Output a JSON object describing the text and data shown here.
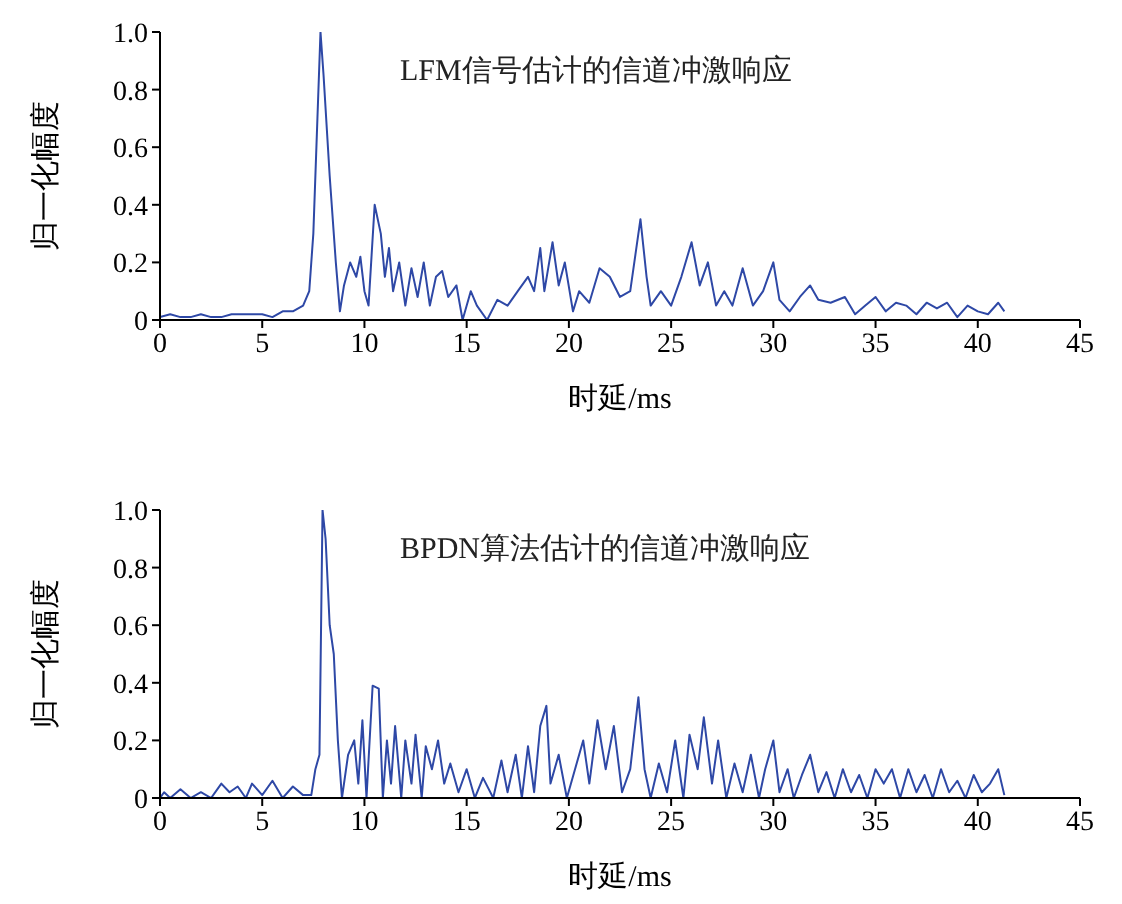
{
  "chart_data": [
    {
      "type": "line",
      "annotations": [
        "LFM信号估计的信道冲激响应"
      ],
      "xlabel": "时延/ms",
      "ylabel": "归一化幅度",
      "xlim": [
        0,
        45
      ],
      "xticks": [
        0,
        5,
        10,
        15,
        20,
        25,
        30,
        35,
        40,
        45
      ],
      "ylim": [
        0,
        1
      ],
      "yticks": [
        0,
        0.2,
        0.4,
        0.6,
        0.8,
        {
          "value": 1,
          "label": "1.0"
        }
      ],
      "series": [
        {
          "color": "#2e48a6",
          "x": [
            0,
            0.5,
            1,
            1.5,
            2,
            2.5,
            3,
            3.5,
            4,
            4.5,
            5,
            5.5,
            6,
            6.5,
            7,
            7.3,
            7.5,
            7.7,
            7.85,
            8,
            8.3,
            8.6,
            8.8,
            9,
            9.3,
            9.6,
            9.8,
            10,
            10.2,
            10.5,
            10.8,
            11,
            11.2,
            11.4,
            11.7,
            12,
            12.3,
            12.6,
            12.9,
            13.2,
            13.5,
            13.8,
            14.1,
            14.5,
            14.8,
            15.2,
            15.5,
            16,
            16.5,
            17,
            17.5,
            18,
            18.3,
            18.6,
            18.8,
            19.2,
            19.5,
            19.8,
            20.2,
            20.5,
            21,
            21.5,
            22,
            22.5,
            23,
            23.5,
            23.8,
            24,
            24.5,
            25,
            25.5,
            26,
            26.4,
            26.8,
            27.2,
            27.6,
            28,
            28.5,
            29,
            29.5,
            30,
            30.3,
            30.8,
            31.3,
            31.8,
            32.2,
            32.8,
            33.5,
            34,
            34.5,
            35,
            35.5,
            36,
            36.5,
            37,
            37.5,
            38,
            38.5,
            39,
            39.5,
            40,
            40.5,
            41,
            41.3
          ],
          "values": [
            0.01,
            0.02,
            0.01,
            0.01,
            0.02,
            0.01,
            0.01,
            0.02,
            0.02,
            0.02,
            0.02,
            0.01,
            0.03,
            0.03,
            0.05,
            0.1,
            0.3,
            0.7,
            1,
            0.85,
            0.5,
            0.2,
            0.03,
            0.12,
            0.2,
            0.15,
            0.22,
            0.1,
            0.05,
            0.4,
            0.3,
            0.15,
            0.25,
            0.1,
            0.2,
            0.05,
            0.18,
            0.08,
            0.2,
            0.05,
            0.15,
            0.17,
            0.08,
            0.12,
            0,
            0.1,
            0.05,
            0,
            0.07,
            0.05,
            0.1,
            0.15,
            0.1,
            0.25,
            0.1,
            0.27,
            0.12,
            0.2,
            0.03,
            0.1,
            0.06,
            0.18,
            0.15,
            0.08,
            0.1,
            0.35,
            0.15,
            0.05,
            0.1,
            0.05,
            0.15,
            0.27,
            0.12,
            0.2,
            0.05,
            0.1,
            0.05,
            0.18,
            0.05,
            0.1,
            0.2,
            0.07,
            0.03,
            0.08,
            0.12,
            0.07,
            0.06,
            0.08,
            0.02,
            0.05,
            0.08,
            0.03,
            0.06,
            0.05,
            0.02,
            0.06,
            0.04,
            0.06,
            0.01,
            0.05,
            0.03,
            0.02,
            0.06,
            0.03
          ]
        }
      ]
    },
    {
      "type": "line",
      "annotations": [
        "BPDN算法估计的信道冲激响应"
      ],
      "xlabel": "时延/ms",
      "ylabel": "归一化幅度",
      "xlim": [
        0,
        45
      ],
      "xticks": [
        0,
        5,
        10,
        15,
        20,
        25,
        30,
        35,
        40,
        45
      ],
      "ylim": [
        0,
        1
      ],
      "yticks": [
        0,
        0.2,
        0.4,
        0.6,
        0.8,
        {
          "value": 1,
          "label": "1.0"
        }
      ],
      "series": [
        {
          "color": "#2e48a6",
          "x": [
            0,
            0.2,
            0.5,
            1,
            1.5,
            2,
            2.5,
            3,
            3.4,
            3.8,
            4.2,
            4.5,
            5,
            5.5,
            6,
            6.5,
            7,
            7.4,
            7.6,
            7.8,
            7.95,
            8.1,
            8.3,
            8.5,
            8.7,
            8.9,
            9.2,
            9.5,
            9.7,
            9.9,
            10.1,
            10.4,
            10.7,
            10.9,
            11.1,
            11.3,
            11.5,
            11.8,
            12,
            12.3,
            12.5,
            12.8,
            13,
            13.3,
            13.6,
            13.9,
            14.2,
            14.6,
            15,
            15.4,
            15.8,
            16.3,
            16.7,
            17,
            17.4,
            17.7,
            18,
            18.3,
            18.6,
            18.9,
            19.1,
            19.5,
            19.9,
            20.3,
            20.7,
            21,
            21.4,
            21.8,
            22.2,
            22.6,
            23,
            23.4,
            23.7,
            24,
            24.4,
            24.8,
            25.2,
            25.6,
            25.9,
            26.3,
            26.6,
            27,
            27.3,
            27.7,
            28.1,
            28.5,
            28.9,
            29.3,
            29.6,
            30,
            30.3,
            30.7,
            31,
            31.4,
            31.8,
            32.2,
            32.6,
            33,
            33.4,
            33.8,
            34.2,
            34.6,
            35,
            35.4,
            35.8,
            36.2,
            36.6,
            37,
            37.4,
            37.8,
            38.2,
            38.6,
            39,
            39.4,
            39.8,
            40.2,
            40.6,
            41,
            41.3
          ],
          "values": [
            0,
            0.02,
            0,
            0.03,
            0,
            0.02,
            0,
            0.05,
            0.02,
            0.04,
            0,
            0.05,
            0.01,
            0.06,
            0,
            0.04,
            0.01,
            0.01,
            0.1,
            0.15,
            1,
            0.9,
            0.6,
            0.5,
            0.2,
            0,
            0.15,
            0.2,
            0.05,
            0.27,
            0,
            0.39,
            0.38,
            0,
            0.2,
            0.05,
            0.25,
            0,
            0.2,
            0.05,
            0.22,
            0,
            0.18,
            0.1,
            0.2,
            0.05,
            0.12,
            0.02,
            0.1,
            0,
            0.07,
            0,
            0.13,
            0.02,
            0.15,
            0,
            0.18,
            0.02,
            0.25,
            0.32,
            0.05,
            0.15,
            0,
            0.1,
            0.2,
            0.05,
            0.27,
            0.1,
            0.25,
            0.02,
            0.1,
            0.35,
            0.1,
            0,
            0.12,
            0.02,
            0.2,
            0,
            0.22,
            0.1,
            0.28,
            0.05,
            0.2,
            0,
            0.12,
            0.02,
            0.15,
            0,
            0.1,
            0.2,
            0.02,
            0.1,
            0,
            0.08,
            0.15,
            0.02,
            0.09,
            0,
            0.1,
            0.02,
            0.08,
            0,
            0.1,
            0.05,
            0.1,
            0,
            0.1,
            0.02,
            0.08,
            0,
            0.1,
            0.02,
            0.06,
            0,
            0.08,
            0.02,
            0.05,
            0.1,
            0.01
          ]
        }
      ]
    }
  ]
}
